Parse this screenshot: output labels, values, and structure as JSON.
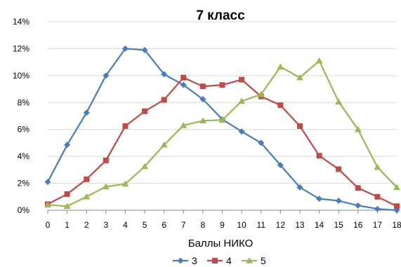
{
  "chart_data": {
    "type": "line",
    "title": "7 класс",
    "xlabel": "Баллы НИКО",
    "ylabel": "",
    "categories": [
      "0",
      "1",
      "2",
      "3",
      "4",
      "5",
      "6",
      "7",
      "8",
      "9",
      "10",
      "11",
      "12",
      "13",
      "14",
      "15",
      "16",
      "17",
      "18"
    ],
    "ylim": [
      0,
      14
    ],
    "yticks": [
      "0%",
      "2%",
      "4%",
      "6%",
      "8%",
      "10%",
      "12%",
      "14%"
    ],
    "grid": true,
    "legend_position": "bottom",
    "series": [
      {
        "name": "3",
        "color": "#4a7ebb",
        "marker": "diamond",
        "values": [
          2.1,
          4.85,
          7.25,
          10.0,
          12.0,
          11.9,
          10.1,
          9.3,
          8.25,
          6.75,
          5.85,
          5.0,
          3.35,
          1.7,
          0.85,
          0.7,
          0.35,
          0.1,
          0.0
        ]
      },
      {
        "name": "4",
        "color": "#be4b48",
        "marker": "square",
        "values": [
          0.45,
          1.2,
          2.3,
          3.7,
          6.25,
          7.35,
          8.2,
          9.85,
          9.2,
          9.3,
          9.7,
          8.45,
          7.8,
          6.25,
          4.05,
          3.05,
          1.65,
          1.0,
          0.3
        ]
      },
      {
        "name": "5",
        "color": "#98b954",
        "marker": "triangle",
        "values": [
          0.4,
          0.3,
          1.0,
          1.75,
          1.95,
          3.25,
          4.85,
          6.3,
          6.65,
          6.7,
          8.1,
          8.6,
          10.65,
          9.85,
          11.1,
          8.05,
          6.0,
          3.2,
          1.7
        ]
      }
    ]
  }
}
